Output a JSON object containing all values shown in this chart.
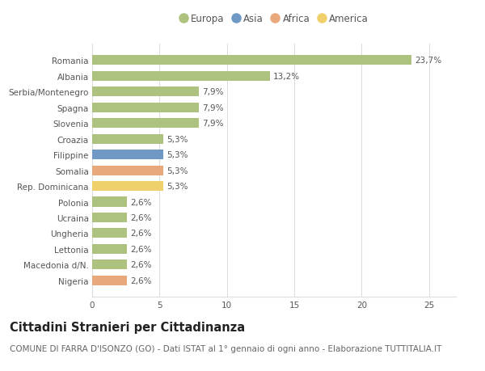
{
  "categories": [
    "Romania",
    "Albania",
    "Serbia/Montenegro",
    "Spagna",
    "Slovenia",
    "Croazia",
    "Filippine",
    "Somalia",
    "Rep. Dominicana",
    "Polonia",
    "Ucraina",
    "Ungheria",
    "Lettonia",
    "Macedonia d/N.",
    "Nigeria"
  ],
  "values": [
    23.7,
    13.2,
    7.9,
    7.9,
    7.9,
    5.3,
    5.3,
    5.3,
    5.3,
    2.6,
    2.6,
    2.6,
    2.6,
    2.6,
    2.6
  ],
  "labels": [
    "23,7%",
    "13,2%",
    "7,9%",
    "7,9%",
    "7,9%",
    "5,3%",
    "5,3%",
    "5,3%",
    "5,3%",
    "2,6%",
    "2,6%",
    "2,6%",
    "2,6%",
    "2,6%",
    "2,6%"
  ],
  "continents": [
    "Europa",
    "Europa",
    "Europa",
    "Europa",
    "Europa",
    "Europa",
    "Asia",
    "Africa",
    "America",
    "Europa",
    "Europa",
    "Europa",
    "Europa",
    "Europa",
    "Africa"
  ],
  "colors": {
    "Europa": "#adc27e",
    "Asia": "#7098c4",
    "Africa": "#e8a87c",
    "America": "#f0d06a"
  },
  "legend_items": [
    "Europa",
    "Asia",
    "Africa",
    "America"
  ],
  "background_color": "#ffffff",
  "grid_color": "#dddddd",
  "xlim": [
    0,
    27
  ],
  "xticks": [
    0,
    5,
    10,
    15,
    20,
    25
  ],
  "title": "Cittadini Stranieri per Cittadinanza",
  "subtitle": "COMUNE DI FARRA D'ISONZO (GO) - Dati ISTAT al 1° gennaio di ogni anno - Elaborazione TUTTITALIA.IT",
  "title_fontsize": 10.5,
  "subtitle_fontsize": 7.5,
  "bar_height": 0.62,
  "label_fontsize": 7.5,
  "tick_fontsize": 7.5,
  "legend_fontsize": 8.5
}
